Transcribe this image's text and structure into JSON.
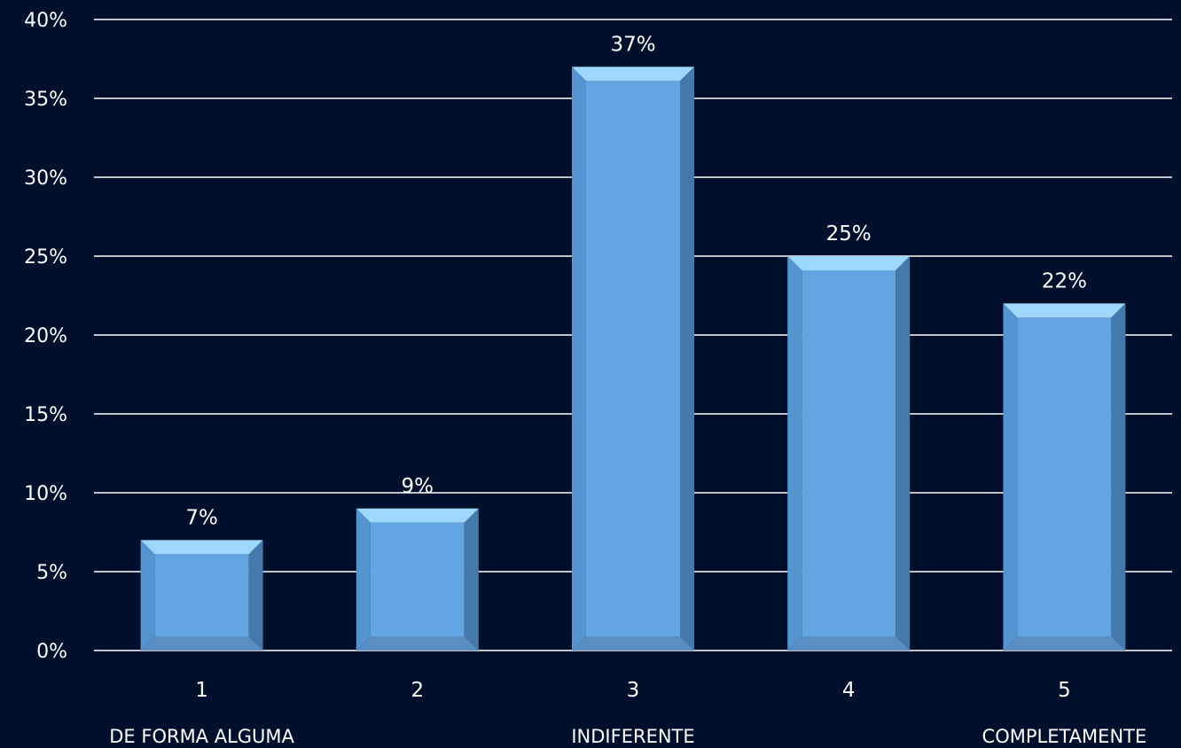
{
  "chart_data": {
    "type": "bar",
    "categories": [
      "1",
      "2",
      "3",
      "4",
      "5"
    ],
    "values": [
      7,
      9,
      37,
      25,
      22
    ],
    "data_labels": [
      "7%",
      "9%",
      "37%",
      "25%",
      "22%"
    ],
    "ylim": [
      0,
      40
    ],
    "yticks": [
      "0%",
      "5%",
      "10%",
      "15%",
      "20%",
      "25%",
      "30%",
      "35%",
      "40%"
    ],
    "scale_anchors": [
      {
        "text": "DE FORMA ALGUMA",
        "category": "1"
      },
      {
        "text": "INDIFERENTE",
        "category": "3"
      },
      {
        "text": "COMPLETAMENTE",
        "category": "5"
      }
    ],
    "grid": true,
    "legend": "none",
    "colors": {
      "background": "#000f2b",
      "bar_face": "#63a5e1",
      "bar_top": "#9ed7fc",
      "bar_left": "#5394d1",
      "bar_right": "#4679ab",
      "bar_bottom": "#5a8ec2",
      "gridline": "#ffffff",
      "text": "#ffffff"
    }
  }
}
